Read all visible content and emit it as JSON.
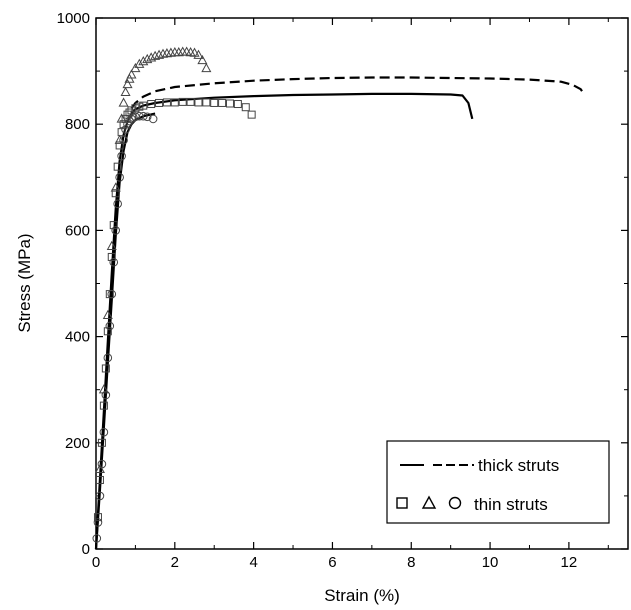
{
  "chart_data": {
    "type": "line",
    "xlabel": "Strain (%)",
    "ylabel": "Stress (MPa)",
    "xlim": [
      0,
      13.5
    ],
    "ylim": [
      0,
      1000
    ],
    "xticks": [
      0,
      2,
      4,
      6,
      8,
      10,
      12
    ],
    "yticks": [
      0,
      200,
      400,
      600,
      800,
      1000
    ],
    "grid": false,
    "legend": {
      "placement": "bottom-right",
      "entries": [
        {
          "label": "thick struts",
          "symbols": [
            "solid-line",
            "dashed-line"
          ]
        },
        {
          "label": "thin struts",
          "symbols": [
            "square",
            "triangle",
            "circle"
          ]
        }
      ]
    },
    "series": [
      {
        "group": "thick struts",
        "style": "solid",
        "x": [
          0,
          0.1,
          0.2,
          0.3,
          0.4,
          0.5,
          0.6,
          0.7,
          0.8,
          0.9,
          1.0,
          1.2,
          1.5,
          2.0,
          3.0,
          4.0,
          5.0,
          6.0,
          7.0,
          8.0,
          9.0,
          9.3,
          9.45,
          9.55
        ],
        "y": [
          0,
          130,
          260,
          390,
          520,
          640,
          730,
          780,
          805,
          820,
          828,
          835,
          840,
          845,
          850,
          853,
          855,
          856,
          857,
          857,
          856,
          854,
          840,
          810
        ]
      },
      {
        "group": "thick struts",
        "style": "solid",
        "x": [
          0,
          0.1,
          0.2,
          0.3,
          0.4,
          0.5,
          0.6,
          0.7,
          0.8,
          0.9,
          1.0,
          1.2,
          1.5
        ],
        "y": [
          0,
          110,
          230,
          350,
          470,
          590,
          690,
          750,
          785,
          800,
          808,
          815,
          820
        ]
      },
      {
        "group": "thick struts",
        "style": "dashed",
        "x": [
          0.9,
          1.0,
          1.2,
          1.5,
          2.0,
          3.0,
          4.0,
          5.0,
          6.0,
          7.0,
          8.0,
          9.0,
          10.0,
          11.0,
          11.8,
          12.1,
          12.3,
          12.4
        ],
        "y": [
          830,
          840,
          852,
          862,
          870,
          877,
          882,
          885,
          887,
          888,
          888,
          887,
          886,
          884,
          880,
          874,
          866,
          855
        ]
      },
      {
        "group": "thin struts",
        "marker": "square",
        "x": [
          0.05,
          0.1,
          0.15,
          0.2,
          0.25,
          0.3,
          0.35,
          0.4,
          0.45,
          0.5,
          0.55,
          0.6,
          0.65,
          0.7,
          0.75,
          0.8,
          0.85,
          0.9,
          1.0,
          1.1,
          1.2,
          1.4,
          1.6,
          1.8,
          2.0,
          2.2,
          2.4,
          2.6,
          2.8,
          3.0,
          3.2,
          3.4,
          3.6,
          3.8,
          3.95
        ],
        "y": [
          60,
          130,
          200,
          270,
          340,
          410,
          480,
          550,
          610,
          670,
          720,
          760,
          785,
          800,
          810,
          818,
          822,
          826,
          830,
          833,
          835,
          838,
          840,
          841,
          841,
          842,
          842,
          841,
          841,
          840,
          840,
          839,
          838,
          832,
          818
        ]
      },
      {
        "group": "thin struts",
        "marker": "triangle",
        "x": [
          0.1,
          0.2,
          0.3,
          0.4,
          0.5,
          0.6,
          0.65,
          0.7,
          0.75,
          0.8,
          0.85,
          0.9,
          1.0,
          1.1,
          1.2,
          1.3,
          1.4,
          1.5,
          1.6,
          1.7,
          1.8,
          1.9,
          2.0,
          2.1,
          2.2,
          2.3,
          2.4,
          2.5,
          2.6,
          2.7,
          2.8
        ],
        "y": [
          150,
          300,
          440,
          570,
          680,
          770,
          810,
          840,
          860,
          875,
          885,
          893,
          905,
          913,
          918,
          922,
          925,
          928,
          930,
          932,
          933,
          934,
          935,
          935,
          936,
          936,
          935,
          934,
          930,
          920,
          905
        ]
      },
      {
        "group": "thin struts",
        "marker": "circle",
        "x": [
          0.02,
          0.05,
          0.1,
          0.15,
          0.2,
          0.25,
          0.3,
          0.35,
          0.4,
          0.45,
          0.5,
          0.55,
          0.6,
          0.65,
          0.7,
          0.75,
          0.8,
          0.85,
          0.9,
          0.95,
          1.0,
          1.1,
          1.2,
          1.3,
          1.45
        ],
        "y": [
          20,
          50,
          100,
          160,
          220,
          290,
          360,
          420,
          480,
          540,
          600,
          650,
          700,
          740,
          770,
          790,
          800,
          806,
          810,
          812,
          814,
          815,
          815,
          814,
          810
        ]
      }
    ]
  }
}
